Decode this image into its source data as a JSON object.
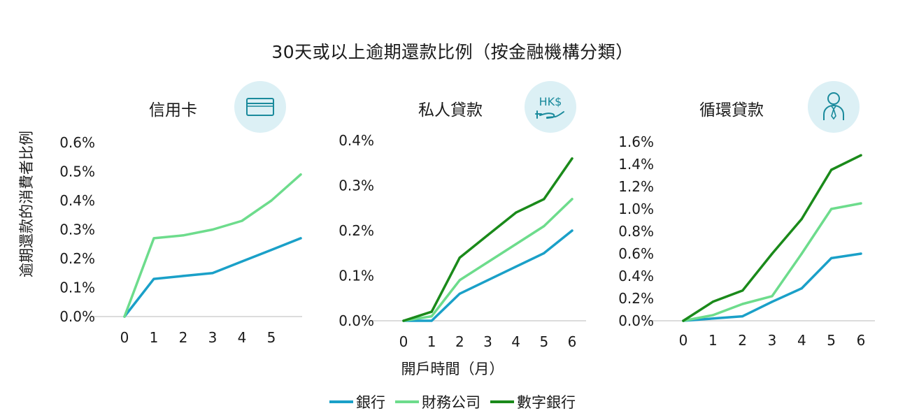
{
  "title": "30天或以上逾期還款比例（按金融機構分類）",
  "ylabel": "逾期還款的消費者比例",
  "xlabel": "開戶時間（月）",
  "colors": {
    "bank": "#1aa0c8",
    "finance": "#6ddc8c",
    "digital": "#1a8a1a",
    "icon_bg": "#dcf0f5",
    "icon_stroke": "#1a8a9c"
  },
  "legend": [
    {
      "label": "銀行",
      "color": "#1aa0c8"
    },
    {
      "label": "財務公司",
      "color": "#6ddc8c"
    },
    {
      "label": "數字銀行",
      "color": "#1a8a1a"
    }
  ],
  "panels": [
    {
      "title": "信用卡",
      "icon": "credit-card-icon"
    },
    {
      "title": "私人貸款",
      "icon": "hk-dollar-hand-icon",
      "icon_text": "HK$"
    },
    {
      "title": "循環貸款",
      "icon": "person-icon"
    }
  ],
  "chart_data": [
    {
      "type": "line",
      "title": "信用卡",
      "x": [
        0,
        1,
        2,
        3,
        4,
        5,
        6
      ],
      "xticks": [
        "0",
        "1",
        "2",
        "3",
        "4",
        "5"
      ],
      "ylim": [
        0,
        0.6
      ],
      "yticks": [
        "0.0%",
        "0.1%",
        "0.2%",
        "0.3%",
        "0.4%",
        "0.5%",
        "0.6%"
      ],
      "series": [
        {
          "name": "銀行",
          "color": "#1aa0c8",
          "values": [
            0.0,
            0.13,
            0.14,
            0.15,
            0.19,
            0.23,
            0.27
          ]
        },
        {
          "name": "財務公司",
          "color": "#6ddc8c",
          "values": [
            0.0,
            0.27,
            0.28,
            0.3,
            0.33,
            0.4,
            0.49
          ]
        }
      ]
    },
    {
      "type": "line",
      "title": "私人貸款",
      "x": [
        0,
        1,
        2,
        3,
        4,
        5,
        6
      ],
      "xticks": [
        "0",
        "1",
        "2",
        "3",
        "4",
        "5",
        "6"
      ],
      "ylim": [
        0,
        0.4
      ],
      "yticks": [
        "0.0%",
        "0.1%",
        "0.2%",
        "0.3%",
        "0.4%"
      ],
      "series": [
        {
          "name": "銀行",
          "color": "#1aa0c8",
          "values": [
            0.0,
            0.0,
            0.06,
            0.09,
            0.12,
            0.15,
            0.2
          ]
        },
        {
          "name": "財務公司",
          "color": "#6ddc8c",
          "values": [
            0.0,
            0.01,
            0.09,
            0.13,
            0.17,
            0.21,
            0.27
          ]
        },
        {
          "name": "數字銀行",
          "color": "#1a8a1a",
          "values": [
            0.0,
            0.02,
            0.14,
            0.19,
            0.24,
            0.27,
            0.36
          ]
        }
      ]
    },
    {
      "type": "line",
      "title": "循環貸款",
      "x": [
        0,
        1,
        2,
        3,
        4,
        5,
        6
      ],
      "xticks": [
        "0",
        "1",
        "2",
        "3",
        "4",
        "5",
        "6"
      ],
      "ylim": [
        0,
        1.6
      ],
      "yticks": [
        "0.0%",
        "0.2%",
        "0.4%",
        "0.6%",
        "0.8%",
        "1.0%",
        "1.2%",
        "1.4%",
        "1.6%"
      ],
      "series": [
        {
          "name": "銀行",
          "color": "#1aa0c8",
          "values": [
            0.0,
            0.02,
            0.04,
            0.17,
            0.29,
            0.56,
            0.6
          ]
        },
        {
          "name": "財務公司",
          "color": "#6ddc8c",
          "values": [
            0.0,
            0.05,
            0.15,
            0.22,
            0.6,
            1.0,
            1.05
          ]
        },
        {
          "name": "數字銀行",
          "color": "#1a8a1a",
          "values": [
            0.0,
            0.17,
            0.27,
            0.6,
            0.91,
            1.35,
            1.48
          ]
        }
      ]
    }
  ]
}
